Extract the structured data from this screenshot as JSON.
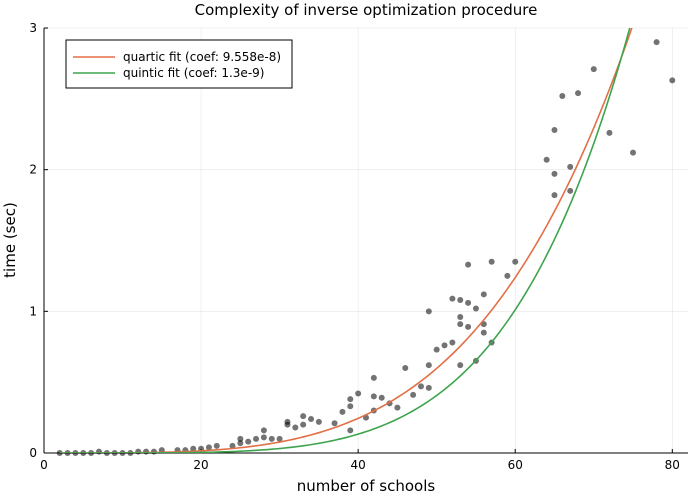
{
  "chart_data": {
    "type": "scatter",
    "title": "Complexity of inverse optimization procedure",
    "xlabel": "number of schools",
    "ylabel": "time (sec)",
    "xlim": [
      0,
      82
    ],
    "ylim": [
      0,
      3
    ],
    "xticks": [
      0,
      20,
      40,
      60,
      80
    ],
    "yticks": [
      0,
      1,
      2,
      3
    ],
    "grid": true,
    "legend_position": "top-left",
    "scatter": {
      "color": "#000000",
      "points": [
        [
          2,
          0.0
        ],
        [
          3,
          0.0
        ],
        [
          4,
          0.0
        ],
        [
          5,
          0.0
        ],
        [
          6,
          0.0
        ],
        [
          7,
          0.01
        ],
        [
          8,
          0.0
        ],
        [
          9,
          0.0
        ],
        [
          10,
          0.0
        ],
        [
          11,
          0.0
        ],
        [
          12,
          0.01
        ],
        [
          13,
          0.01
        ],
        [
          14,
          0.01
        ],
        [
          15,
          0.02
        ],
        [
          17,
          0.02
        ],
        [
          18,
          0.02
        ],
        [
          19,
          0.03
        ],
        [
          20,
          0.03
        ],
        [
          21,
          0.04
        ],
        [
          22,
          0.05
        ],
        [
          24,
          0.05
        ],
        [
          25,
          0.07
        ],
        [
          25,
          0.1
        ],
        [
          26,
          0.08
        ],
        [
          27,
          0.1
        ],
        [
          28,
          0.11
        ],
        [
          28,
          0.16
        ],
        [
          29,
          0.1
        ],
        [
          30,
          0.1
        ],
        [
          31,
          0.2
        ],
        [
          31,
          0.22
        ],
        [
          32,
          0.18
        ],
        [
          33,
          0.2
        ],
        [
          33,
          0.26
        ],
        [
          34,
          0.24
        ],
        [
          35,
          0.22
        ],
        [
          37,
          0.21
        ],
        [
          38,
          0.29
        ],
        [
          39,
          0.16
        ],
        [
          39,
          0.33
        ],
        [
          39,
          0.38
        ],
        [
          40,
          0.42
        ],
        [
          41,
          0.25
        ],
        [
          42,
          0.3
        ],
        [
          42,
          0.4
        ],
        [
          42,
          0.53
        ],
        [
          43,
          0.39
        ],
        [
          44,
          0.35
        ],
        [
          45,
          0.32
        ],
        [
          46,
          0.6
        ],
        [
          47,
          0.41
        ],
        [
          48,
          0.47
        ],
        [
          49,
          0.46
        ],
        [
          49,
          0.62
        ],
        [
          49,
          1.0
        ],
        [
          50,
          0.73
        ],
        [
          51,
          0.76
        ],
        [
          52,
          0.78
        ],
        [
          52,
          1.09
        ],
        [
          53,
          0.62
        ],
        [
          53,
          0.91
        ],
        [
          53,
          0.96
        ],
        [
          53,
          1.08
        ],
        [
          54,
          0.89
        ],
        [
          54,
          1.06
        ],
        [
          54,
          1.33
        ],
        [
          55,
          0.65
        ],
        [
          55,
          1.02
        ],
        [
          56,
          0.85
        ],
        [
          56,
          0.91
        ],
        [
          56,
          1.12
        ],
        [
          57,
          0.78
        ],
        [
          57,
          1.35
        ],
        [
          59,
          1.25
        ],
        [
          60,
          1.35
        ],
        [
          64,
          2.07
        ],
        [
          65,
          1.82
        ],
        [
          65,
          1.97
        ],
        [
          65,
          2.28
        ],
        [
          66,
          2.52
        ],
        [
          67,
          1.85
        ],
        [
          67,
          2.02
        ],
        [
          68,
          2.54
        ],
        [
          70,
          2.71
        ],
        [
          72,
          2.26
        ],
        [
          75,
          2.12
        ],
        [
          78,
          2.9
        ],
        [
          80,
          2.63
        ]
      ]
    },
    "series": [
      {
        "name": "quartic fit (coef: 9.558e-8)",
        "color": "#e26f46",
        "kind": "power",
        "coef": 9.558e-08,
        "exponent": 4
      },
      {
        "name": "quintic fit (coef: 1.3e-9)",
        "color": "#3da44d",
        "kind": "power",
        "coef": 1.3e-09,
        "exponent": 5
      }
    ]
  }
}
